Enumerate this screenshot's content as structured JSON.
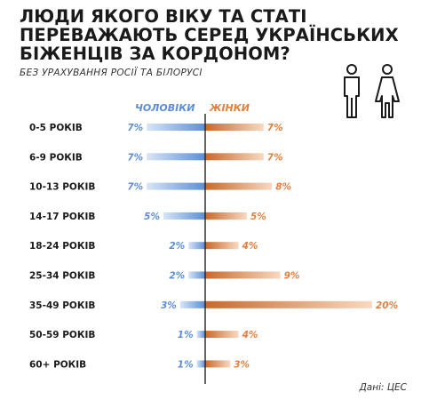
{
  "header": {
    "title": "ЛЮДИ ЯКОГО ВІКУ ТА СТАТІ ПЕРЕВАЖАЮТЬ СЕРЕД УКРАЇНСЬКИХ БІЖЕНЦІВ ЗА КОРДОНОМ?",
    "subtitle": "БЕЗ УРАХУВАННЯ РОСІЇ ТА БІЛОРУСІ"
  },
  "icons": {
    "male": "man-icon",
    "female": "woman-icon"
  },
  "footer": {
    "source": "Дані: ЦЕС"
  },
  "colors": {
    "men": "#5b8ed6",
    "women": "#e07f3e",
    "axis": "#222222"
  },
  "chart_data": {
    "type": "bar",
    "orientation": "horizontal-diverging",
    "categories": [
      "0-5 РОКІВ",
      "6-9 РОКІВ",
      "10-13 РОКІВ",
      "14-17 РОКІВ",
      "18-24 РОКІВ",
      "25-34 РОКІВ",
      "35-49 РОКІВ",
      "50-59 РОКІВ",
      "60+ РОКІВ"
    ],
    "series": [
      {
        "name": "ЧОЛОВІКИ",
        "values": [
          7,
          7,
          7,
          5,
          2,
          2,
          3,
          1,
          1
        ],
        "labels": [
          "7%",
          "7%",
          "7%",
          "5%",
          "2%",
          "2%",
          "3%",
          "1%",
          "1%"
        ]
      },
      {
        "name": "ЖІНКИ",
        "values": [
          7,
          7,
          8,
          5,
          4,
          9,
          20,
          4,
          3
        ],
        "labels": [
          "7%",
          "7%",
          "8%",
          "5%",
          "4%",
          "9%",
          "20%",
          "4%",
          "3%"
        ]
      }
    ],
    "unit": "%",
    "legend": "top"
  }
}
